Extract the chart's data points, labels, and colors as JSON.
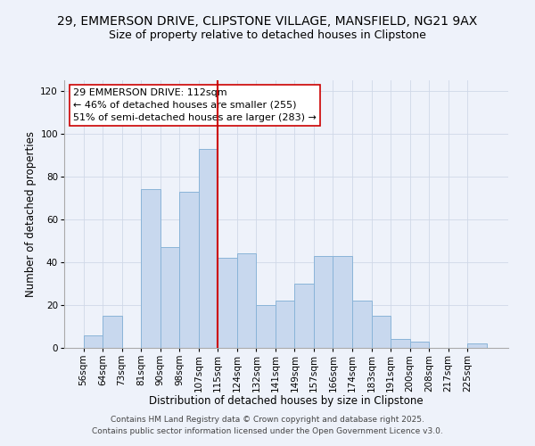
{
  "title_line1": "29, EMMERSON DRIVE, CLIPSTONE VILLAGE, MANSFIELD, NG21 9AX",
  "title_line2": "Size of property relative to detached houses in Clipstone",
  "xlabel": "Distribution of detached houses by size in Clipstone",
  "ylabel": "Number of detached properties",
  "bar_labels": [
    "56sqm",
    "64sqm",
    "73sqm",
    "81sqm",
    "90sqm",
    "98sqm",
    "107sqm",
    "115sqm",
    "124sqm",
    "132sqm",
    "141sqm",
    "149sqm",
    "157sqm",
    "166sqm",
    "174sqm",
    "183sqm",
    "191sqm",
    "200sqm",
    "208sqm",
    "217sqm",
    "225sqm"
  ],
  "bar_values": [
    6,
    15,
    0,
    74,
    47,
    73,
    93,
    42,
    44,
    20,
    22,
    30,
    43,
    43,
    22,
    15,
    4,
    3,
    0,
    0,
    2
  ],
  "bar_color": "#c8d8ee",
  "bar_edge_color": "#8ab4d8",
  "grid_color": "#d0d8e8",
  "bg_color": "#eef2fa",
  "vline_x": 112,
  "vline_color": "#cc0000",
  "annotation_line1": "29 EMMERSON DRIVE: 112sqm",
  "annotation_line2": "← 46% of detached houses are smaller (255)",
  "annotation_line3": "51% of semi-detached houses are larger (283) →",
  "annotation_box_color": "#ffffff",
  "annotation_box_edge": "#cc0000",
  "footer_line1": "Contains HM Land Registry data © Crown copyright and database right 2025.",
  "footer_line2": "Contains public sector information licensed under the Open Government Licence v3.0.",
  "ylim": [
    0,
    125
  ],
  "xlim": [
    48,
    233
  ],
  "bin_width": 8,
  "title_fontsize": 10,
  "subtitle_fontsize": 9,
  "axis_label_fontsize": 8.5,
  "tick_fontsize": 7.5,
  "annotation_fontsize": 8,
  "footer_fontsize": 6.5
}
